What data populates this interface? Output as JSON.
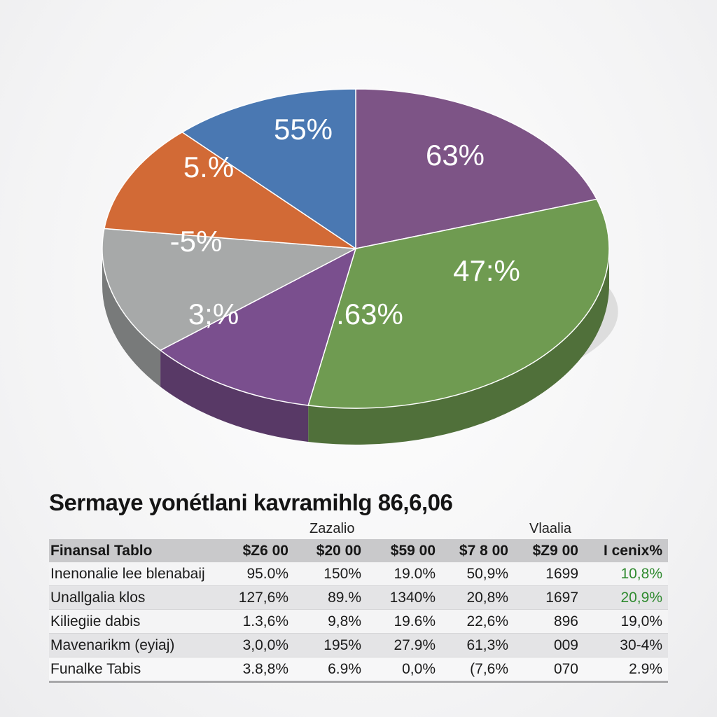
{
  "chart_data": [
    {
      "type": "pie",
      "title": "",
      "slices": [
        {
          "label": "63%",
          "value": 20.0,
          "color": "#7d5486"
        },
        {
          "label": "47:%",
          "value": 33.0,
          "color": "#6f9b51"
        },
        {
          "label": ".63%",
          "value": 0,
          "color": "#6f9b51"
        },
        {
          "label": "3;%",
          "value": 11.0,
          "color": "#7a4f8e"
        },
        {
          "label": "-5%",
          "value": 13.0,
          "color": "#a7a9a9"
        },
        {
          "label": "5.%",
          "value": 11.0,
          "color": "#d26a36"
        },
        {
          "label": "55%",
          "value": 12.0,
          "color": "#4a78b2"
        }
      ]
    },
    {
      "type": "table",
      "title": "Sermaye yonétlani kavramihlg 86,6,06",
      "group_headers": [
        "Zazalio",
        "Vlaalia"
      ],
      "columns": [
        "Finansal Tablo",
        "$Z6 00",
        "$20 00",
        "$59 00",
        "$7 8 00",
        "$Z9 00",
        "I cenix%"
      ],
      "rows": [
        [
          "Inenonalie lee blenabaij",
          "95.0%",
          "150%",
          "19.0%",
          "50,9%",
          "1699",
          "10,8%"
        ],
        [
          "Unallgalia klos",
          "127,6%",
          "89.%",
          "1340%",
          "20,8%",
          "1697",
          "20,9%"
        ],
        [
          "Kiliegiie dabis",
          "1.3,6%",
          "9,8%",
          "19.6%",
          "22,6%",
          "896",
          "19,0%"
        ],
        [
          "Mavenarikm (eyiaj)",
          "3,0,0%",
          "195%",
          "27.9%",
          "61,3%",
          "009",
          "30-4%"
        ],
        [
          "Funalke Tabis",
          "3.8,8%",
          "6.9%",
          "0,0%",
          "(7,6%",
          "070",
          "2.9%"
        ]
      ],
      "positive_color": "#2f8a2f"
    }
  ]
}
